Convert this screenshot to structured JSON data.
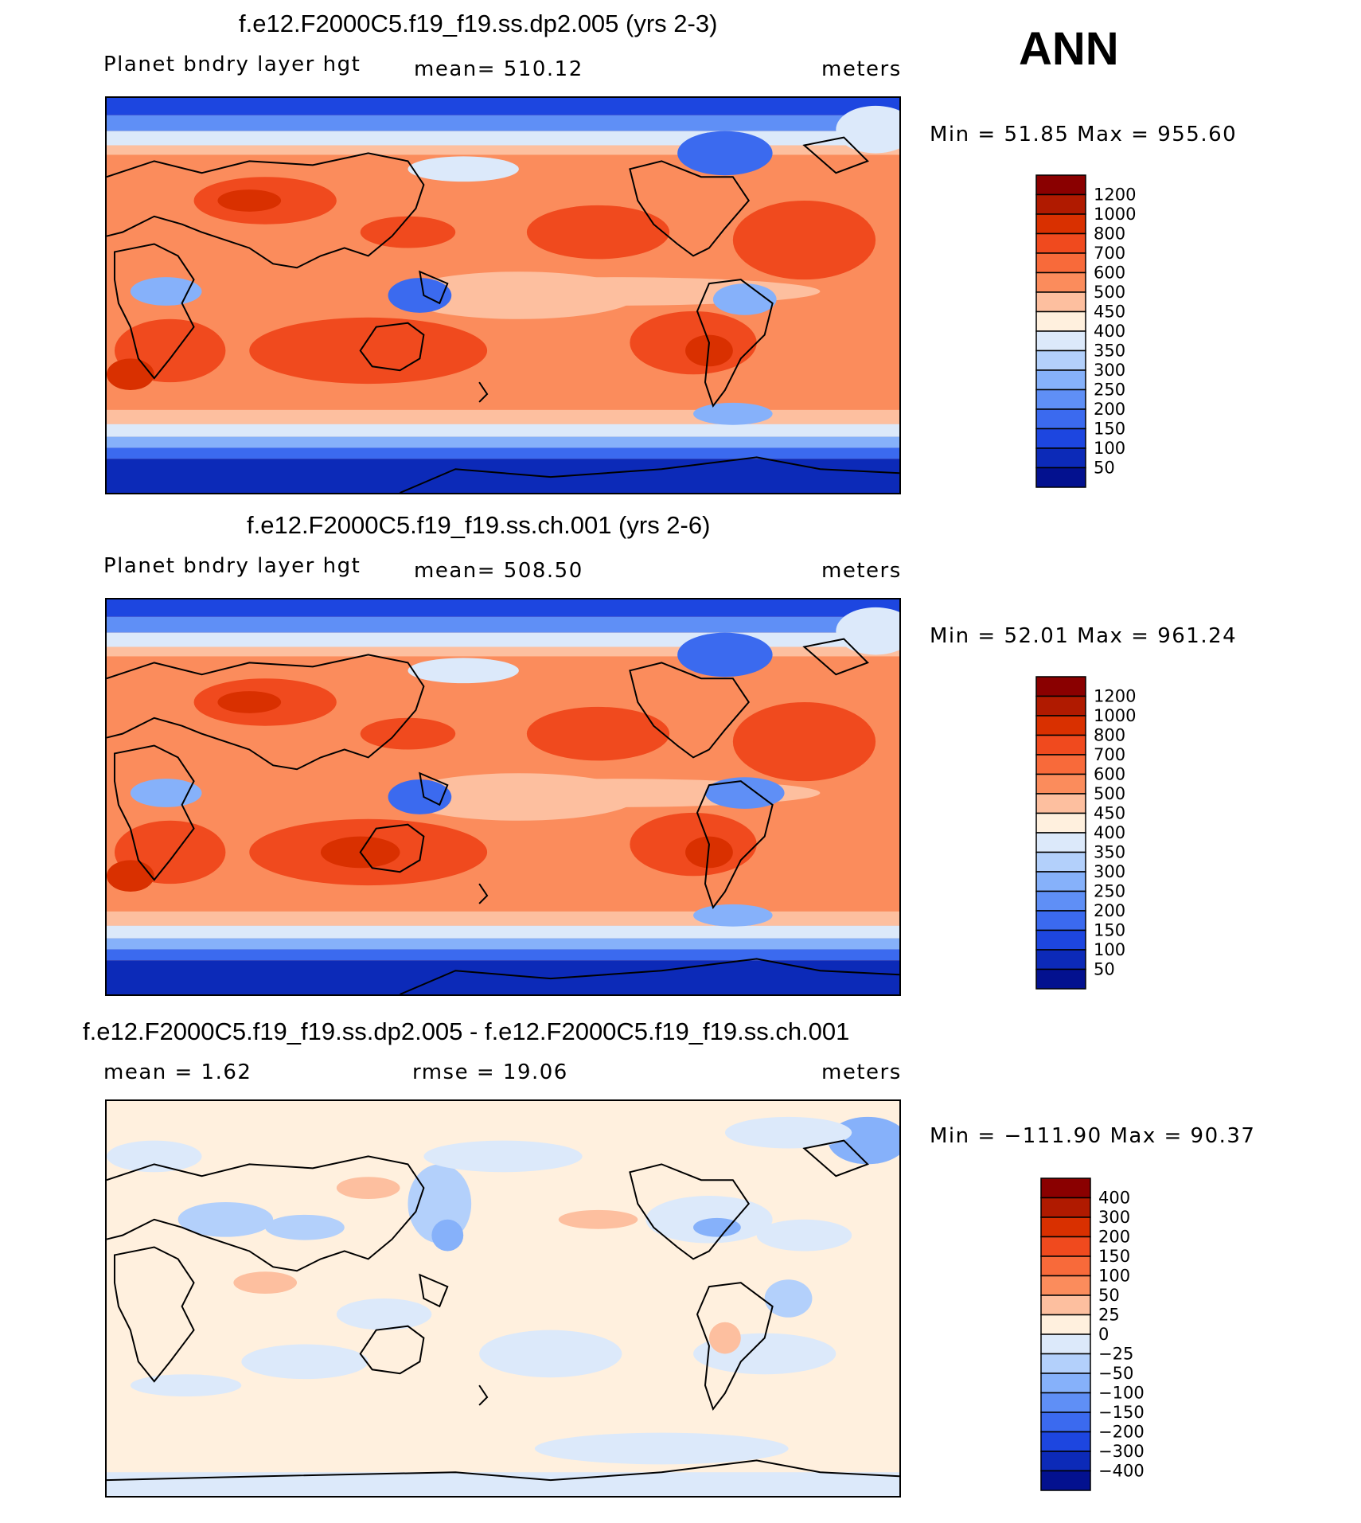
{
  "season": "ANN",
  "variable_label": "meters",
  "panels": [
    {
      "title": "f.e12.F2000C5.f19_f19.ss.dp2.005 (yrs 2-3)",
      "left_label": "Planet bndry layer hgt",
      "center_label": "mean=  510.12",
      "right_label": "meters",
      "minmax": "Min =    51.85  Max  =  955.60",
      "colorbar": {
        "colors": [
          "#8a0000",
          "#b01a00",
          "#d93000",
          "#f04a1e",
          "#f86a3a",
          "#fb8c5c",
          "#fdbf9f",
          "#fff0de",
          "#dce9fa",
          "#b3d0fb",
          "#86b1fa",
          "#5f8ff6",
          "#3b6aef",
          "#1d46e0",
          "#0c2ab8",
          "#03118f"
        ],
        "labels": [
          "1200",
          "1000",
          "800",
          "700",
          "600",
          "500",
          "450",
          "400",
          "350",
          "300",
          "250",
          "200",
          "150",
          "100",
          "50"
        ]
      }
    },
    {
      "title": "f.e12.F2000C5.f19_f19.ss.ch.001 (yrs 2-6)",
      "left_label": "Planet bndry layer hgt",
      "center_label": "mean=  508.50",
      "right_label": "meters",
      "minmax": "Min =    52.01  Max  =  961.24",
      "colorbar": {
        "colors": [
          "#8a0000",
          "#b01a00",
          "#d93000",
          "#f04a1e",
          "#f86a3a",
          "#fb8c5c",
          "#fdbf9f",
          "#fff0de",
          "#dce9fa",
          "#b3d0fb",
          "#86b1fa",
          "#5f8ff6",
          "#3b6aef",
          "#1d46e0",
          "#0c2ab8",
          "#03118f"
        ],
        "labels": [
          "1200",
          "1000",
          "800",
          "700",
          "600",
          "500",
          "450",
          "400",
          "350",
          "300",
          "250",
          "200",
          "150",
          "100",
          "50"
        ]
      }
    },
    {
      "title": "f.e12.F2000C5.f19_f19.ss.dp2.005 - f.e12.F2000C5.f19_f19.ss.ch.001",
      "left_label": "mean  =     1.62",
      "center_label": "rmse  =    19.06",
      "right_label": "meters",
      "minmax": "Min  =  −111.90  Max  =    90.37",
      "colorbar": {
        "colors": [
          "#8a0000",
          "#b01a00",
          "#d93000",
          "#f04a1e",
          "#f86a3a",
          "#fb8c5c",
          "#fdbf9f",
          "#fff0de",
          "#dce9fa",
          "#b3d0fb",
          "#86b1fa",
          "#5f8ff6",
          "#3b6aef",
          "#1d46e0",
          "#0c2ab8",
          "#03118f"
        ],
        "labels": [
          "400",
          "300",
          "200",
          "150",
          "100",
          "50",
          "25",
          "0",
          "−25",
          "−50",
          "−100",
          "−150",
          "−200",
          "−300",
          "−400"
        ]
      }
    }
  ]
}
